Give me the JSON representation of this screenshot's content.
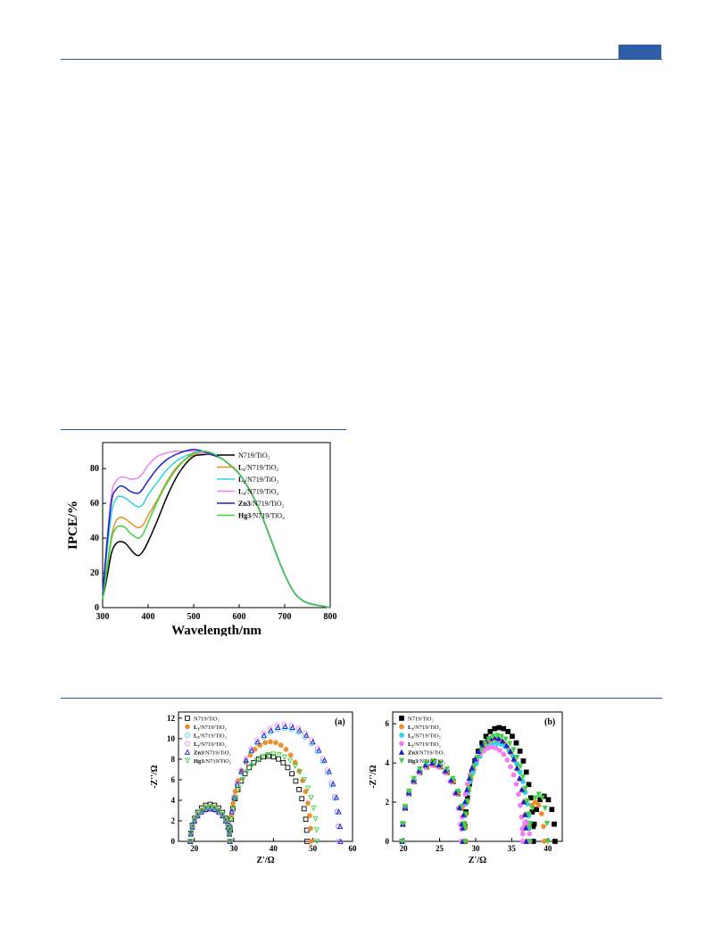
{
  "colors": {
    "rule": "#2f5496",
    "tab": "#2e5ea7",
    "series": [
      "#000000",
      "#f28c28",
      "#29d4e8",
      "#f27df2",
      "#1a22c9",
      "#3fd13f"
    ]
  },
  "chart_data": [
    {
      "type": "line",
      "xlabel": "Wavelength/nm",
      "ylabel": "IPCE/%",
      "xlim": [
        300,
        800
      ],
      "ylim": [
        0,
        95
      ],
      "xticks": [
        "300",
        "400",
        "500",
        "600",
        "700",
        "800"
      ],
      "yticks": [
        "0",
        "20",
        "40",
        "60",
        "80"
      ],
      "legend_position": "top-right",
      "legend": [
        {
          "prefix": "",
          "bold": "",
          "text": "N719/TiO₂"
        },
        {
          "prefix": "",
          "bold": "L₁",
          "text": "/N719/TiO₂"
        },
        {
          "prefix": "",
          "bold": "L₂",
          "text": "/N719/TiO₂"
        },
        {
          "prefix": "",
          "bold": "L₃",
          "text": "/N719/TiO₂"
        },
        {
          "prefix": "",
          "bold": "Zn3",
          "text": "/N719/TiO₂"
        },
        {
          "prefix": "",
          "bold": "Hg3",
          "text": "/N719/TiO₂"
        }
      ],
      "x": [
        300,
        310,
        320,
        330,
        340,
        350,
        360,
        370,
        380,
        390,
        400,
        420,
        440,
        460,
        480,
        500,
        520,
        540,
        560,
        580,
        600,
        620,
        640,
        660,
        680,
        700,
        720,
        740,
        760,
        780,
        800
      ],
      "series": [
        {
          "values": [
            5,
            18,
            32,
            37,
            38,
            37,
            34,
            31,
            30,
            33,
            38,
            50,
            63,
            74,
            82,
            87,
            88,
            88,
            86,
            82,
            77,
            69,
            59,
            46,
            32,
            19,
            9,
            4,
            2,
            1,
            0
          ]
        },
        {
          "values": [
            5,
            24,
            42,
            50,
            52,
            51,
            49,
            47,
            46,
            48,
            53,
            62,
            72,
            80,
            85,
            88,
            89,
            88,
            86,
            82,
            77,
            69,
            59,
            46,
            32,
            19,
            9,
            4,
            2,
            1,
            0
          ]
        },
        {
          "values": [
            6,
            33,
            55,
            63,
            64,
            63,
            61,
            59,
            58,
            60,
            65,
            72,
            79,
            84,
            87,
            89,
            89,
            88,
            86,
            82,
            77,
            69,
            59,
            46,
            32,
            19,
            9,
            4,
            2,
            1,
            0
          ]
        },
        {
          "values": [
            8,
            40,
            66,
            73,
            75,
            75,
            74,
            74,
            75,
            78,
            82,
            87,
            89,
            90,
            90,
            90,
            89,
            88,
            86,
            82,
            77,
            69,
            59,
            46,
            32,
            19,
            9,
            4,
            2,
            1,
            0
          ]
        },
        {
          "values": [
            7,
            38,
            62,
            68,
            70,
            69,
            67,
            66,
            66,
            69,
            73,
            80,
            85,
            88,
            90,
            91,
            90,
            88,
            86,
            82,
            77,
            69,
            59,
            46,
            32,
            19,
            9,
            4,
            2,
            1,
            0
          ]
        },
        {
          "values": [
            5,
            22,
            40,
            46,
            47,
            46,
            43,
            41,
            40,
            43,
            49,
            61,
            71,
            79,
            85,
            89,
            90,
            89,
            86,
            82,
            77,
            69,
            59,
            46,
            32,
            19,
            9,
            4,
            2,
            1,
            0
          ]
        }
      ]
    },
    {
      "type": "scatter",
      "panel_label": "(a)",
      "xlabel": "Z'/Ω",
      "ylabel": "-Z''/Ω",
      "xlim": [
        16,
        60
      ],
      "ylim": [
        0,
        12.6
      ],
      "xticks": [
        "20",
        "30",
        "40",
        "50",
        "60"
      ],
      "yticks": [
        "0",
        "2",
        "4",
        "6",
        "8",
        "10",
        "12"
      ],
      "legend_position": "top-left",
      "legend": [
        {
          "bold": "",
          "text": "N719/TiO₂",
          "marker": "square-open"
        },
        {
          "bold": "L₁",
          "text": "/N719/TiO₂",
          "marker": "circle-filled"
        },
        {
          "bold": "L₂",
          "text": "/N719/TiO₂",
          "marker": "circle-open"
        },
        {
          "bold": "L₃",
          "text": "/N719/TiO₂",
          "marker": "circle-open"
        },
        {
          "bold": "Zn3",
          "text": "/N719/TiO₂",
          "marker": "triangle-open"
        },
        {
          "bold": "Hg3",
          "text": "/N719/TiO₂",
          "marker": "triangle-down-open"
        }
      ],
      "series": [
        {
          "r1": 19,
          "m1": 29,
          "h1": 3.6,
          "r2": 48.5,
          "h2": 8.3
        },
        {
          "r1": 19,
          "m1": 29,
          "h1": 3.4,
          "r2": 49.5,
          "h2": 9.7
        },
        {
          "r1": 19,
          "m1": 29,
          "h1": 3.3,
          "r2": 56.5,
          "h2": 11.0
        },
        {
          "r1": 19,
          "m1": 29,
          "h1": 3.1,
          "r2": 56.5,
          "h2": 11.4
        },
        {
          "r1": 19,
          "m1": 29,
          "h1": 3.2,
          "r2": 57.0,
          "h2": 11.2
        },
        {
          "r1": 19,
          "m1": 29,
          "h1": 3.3,
          "r2": 51.0,
          "h2": 8.5
        }
      ]
    },
    {
      "type": "scatter",
      "panel_label": "(b)",
      "xlabel": "Z'/Ω",
      "ylabel": "-Z''/Ω",
      "xlim": [
        18.5,
        42
      ],
      "ylim": [
        0,
        6.6
      ],
      "xticks": [
        "20",
        "25",
        "30",
        "35",
        "40"
      ],
      "yticks": [
        "0",
        "2",
        "4",
        "6"
      ],
      "legend_position": "top-left",
      "legend": [
        {
          "bold": "",
          "text": "N719/TiO₂",
          "marker": "square-filled"
        },
        {
          "bold": "L₁",
          "text": "/N719/TiO₂",
          "marker": "circle-filled"
        },
        {
          "bold": "L₂",
          "text": "/N719/TiO₂",
          "marker": "circle-filled"
        },
        {
          "bold": "L₃",
          "text": "/N719/TiO₂",
          "marker": "circle-filled"
        },
        {
          "bold": "Zn3",
          "text": "/N719/TiO₂",
          "marker": "triangle-filled"
        },
        {
          "bold": "Hg3",
          "text": "/N719/TiO₂",
          "marker": "triangle-down-filled"
        }
      ],
      "series": [
        {
          "r1": 19.8,
          "m1": 28.5,
          "h1": 3.9,
          "r2": 38.0,
          "h2": 5.8,
          "r3": 41.0,
          "h3": 2.3
        },
        {
          "r1": 19.8,
          "m1": 28.5,
          "h1": 3.9,
          "r2": 37.0,
          "h2": 5.2,
          "r3": 39.5,
          "h3": 2.0
        },
        {
          "r1": 19.8,
          "m1": 28.3,
          "h1": 4.0,
          "r2": 37.5,
          "h2": 5.0
        },
        {
          "r1": 19.8,
          "m1": 28.0,
          "h1": 3.9,
          "r2": 36.5,
          "h2": 4.8,
          "r3": 37.5,
          "h3": 1.0
        },
        {
          "r1": 19.8,
          "m1": 28.2,
          "h1": 4.0,
          "r2": 37.0,
          "h2": 5.3
        },
        {
          "r1": 19.8,
          "m1": 28.5,
          "h1": 4.1,
          "r2": 37.5,
          "h2": 5.4,
          "r3": 40.0,
          "h3": 2.4
        }
      ]
    }
  ]
}
